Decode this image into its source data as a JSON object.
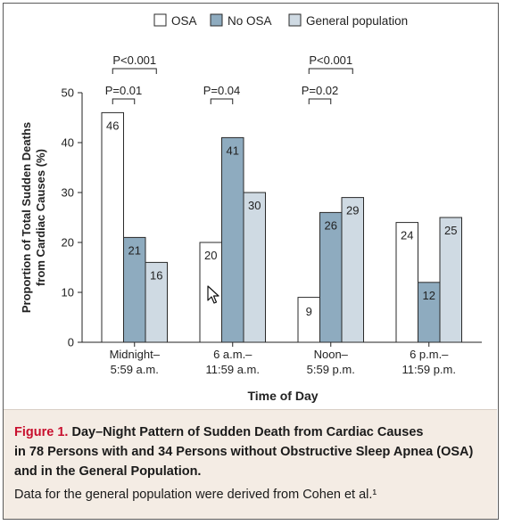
{
  "chart_data": {
    "type": "bar",
    "categories": [
      {
        "line1": "Midnight–",
        "line2": "5:59 a.m."
      },
      {
        "line1": "6 a.m.–",
        "line2": "11:59 a.m."
      },
      {
        "line1": "Noon–",
        "line2": "5:59 p.m."
      },
      {
        "line1": "6 p.m.–",
        "line2": "11:59 p.m."
      }
    ],
    "series": [
      {
        "name": "OSA",
        "values": [
          46,
          20,
          9,
          24
        ],
        "color": "#ffffff"
      },
      {
        "name": "No OSA",
        "values": [
          21,
          41,
          26,
          12
        ],
        "color": "#8eabbf"
      },
      {
        "name": "General population",
        "values": [
          16,
          30,
          29,
          25
        ],
        "color": "#cfdae3"
      }
    ],
    "xlabel": "Time of Day",
    "ylabel_line1": "Proportion of Total Sudden Deaths",
    "ylabel_line2": "from Cardiac Causes (%)",
    "ylim": [
      0,
      50
    ],
    "yticks": [
      "0",
      "10",
      "20",
      "30",
      "40",
      "50"
    ],
    "legend_position": "top-right",
    "grid": false,
    "annotations": [
      {
        "group": 0,
        "from": 0,
        "to": 1,
        "text": "P=0.01",
        "level": 1
      },
      {
        "group": 0,
        "from": 0,
        "to": 2,
        "text": "P<0.001",
        "level": 2
      },
      {
        "group": 1,
        "from": 0,
        "to": 1,
        "text": "P=0.04",
        "level": 1
      },
      {
        "group": 2,
        "from": 0,
        "to": 1,
        "text": "P=0.02",
        "level": 1
      },
      {
        "group": 2,
        "from": 0,
        "to": 2,
        "text": "P<0.001",
        "level": 2
      }
    ]
  },
  "caption": {
    "label": "Figure 1.",
    "title_line1": " Day–Night Pattern of Sudden Death from Cardiac Causes",
    "title_line2": "in 78 Persons with and 34 Persons without Obstructive Sleep Apnea (OSA)",
    "title_line3": "and in the General Population.",
    "note": "Data for the general population were derived from Cohen et al.¹"
  },
  "icons": {
    "cursor": "mouse-pointer-icon"
  }
}
